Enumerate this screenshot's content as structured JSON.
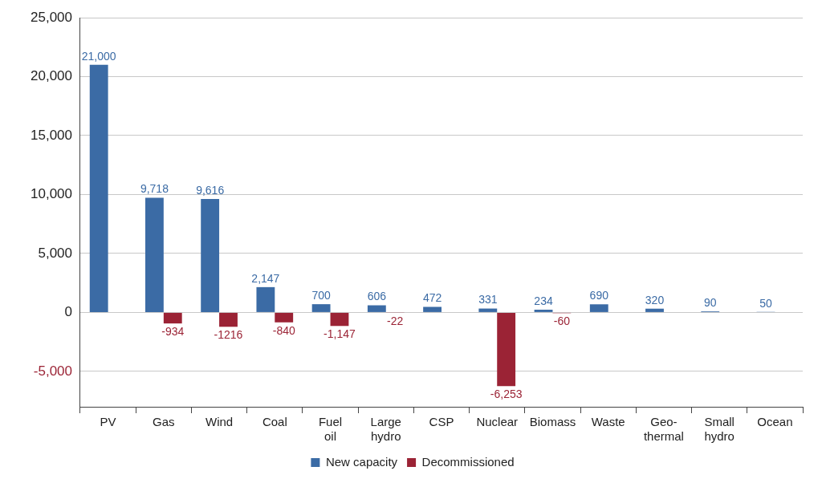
{
  "chart_data": {
    "type": "bar",
    "categories": [
      "PV",
      "Gas",
      "Wind",
      "Coal",
      "Fuel oil",
      "Large hydro",
      "CSP",
      "Nuclear",
      "Biomass",
      "Waste",
      "Geo-thermal",
      "Small hydro",
      "Ocean"
    ],
    "series": [
      {
        "name": "New capacity",
        "color": "#3b6ba5",
        "values": [
          21000,
          9718,
          9616,
          2147,
          700,
          606,
          472,
          331,
          234,
          690,
          320,
          90,
          50
        ],
        "value_labels": [
          "21,000",
          "9,718",
          "9,616",
          "2,147",
          "700",
          "606",
          "472",
          "331",
          "234",
          "690",
          "320",
          "90",
          "50"
        ]
      },
      {
        "name": "Decommissioned",
        "color": "#9b2335",
        "values": [
          null,
          -934,
          -1216,
          -840,
          -1147,
          -22,
          null,
          -6253,
          -60,
          null,
          null,
          null,
          null
        ],
        "value_labels": [
          null,
          "-934",
          "-1216",
          "-840",
          "-1,147",
          "-22",
          null,
          "-6,253",
          "-60",
          null,
          null,
          null,
          null
        ]
      }
    ],
    "ylim": [
      -8000,
      25000
    ],
    "yticks": [
      {
        "value": -5000,
        "label": "-5,000"
      },
      0,
      {
        "value": 5000,
        "label": "5,000"
      },
      {
        "value": 10000,
        "label": "10,000"
      },
      {
        "value": 15000,
        "label": "15,000"
      },
      {
        "value": 20000,
        "label": "20,000"
      },
      {
        "value": 25000,
        "label": "25,000"
      }
    ],
    "grid": true,
    "legend": "bottom",
    "data_labels": true
  }
}
